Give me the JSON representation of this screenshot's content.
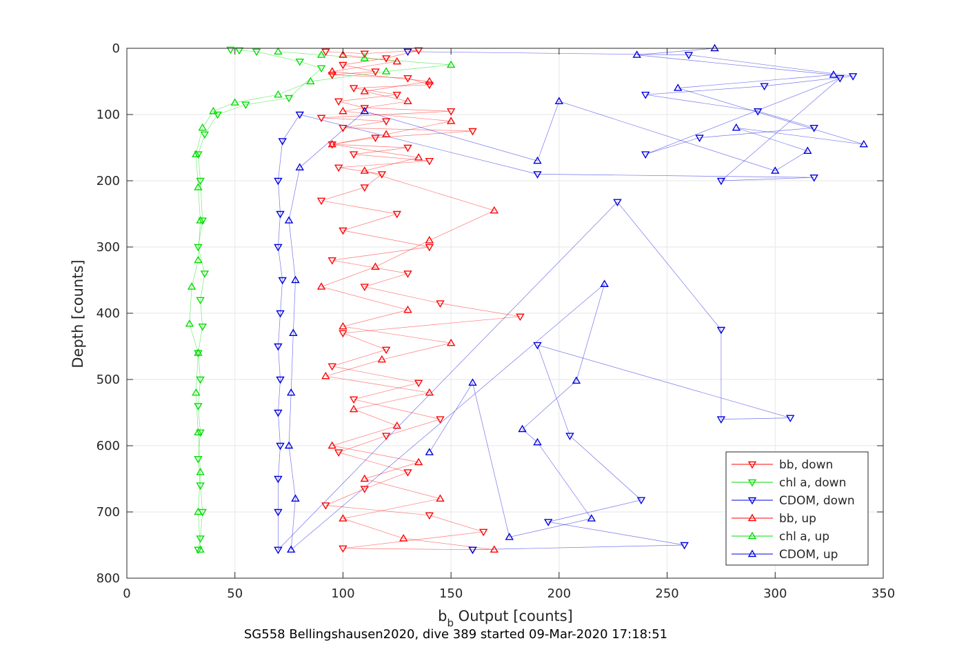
{
  "chart_data": {
    "type": "scatter",
    "title": "SG558 Bellingshausen2020, dive 389 started 09-Mar-2020 17:18:51",
    "xlabel_main": "b",
    "xlabel_sub": "b",
    "xlabel_rest": " Output [counts]",
    "ylabel": "Depth [counts]",
    "xlim": [
      0,
      350
    ],
    "ylim": [
      0,
      800
    ],
    "y_reversed": true,
    "grid": true,
    "legend_placement": "bottom-right",
    "xticks": [
      "0",
      "50",
      "100",
      "150",
      "200",
      "250",
      "300",
      "350"
    ],
    "yticks": [
      "0",
      "100",
      "200",
      "300",
      "400",
      "500",
      "600",
      "700",
      "800"
    ],
    "series": [
      {
        "name": "bb, down",
        "color": "#ff0000",
        "marker": "triangle-down",
        "points": [
          [
            92,
            5
          ],
          [
            110,
            8
          ],
          [
            135,
            3
          ],
          [
            120,
            15
          ],
          [
            100,
            25
          ],
          [
            115,
            35
          ],
          [
            95,
            40
          ],
          [
            130,
            45
          ],
          [
            140,
            55
          ],
          [
            105,
            60
          ],
          [
            125,
            70
          ],
          [
            98,
            80
          ],
          [
            110,
            90
          ],
          [
            150,
            95
          ],
          [
            90,
            105
          ],
          [
            120,
            110
          ],
          [
            100,
            120
          ],
          [
            160,
            125
          ],
          [
            115,
            135
          ],
          [
            95,
            145
          ],
          [
            130,
            150
          ],
          [
            105,
            160
          ],
          [
            140,
            170
          ],
          [
            98,
            180
          ],
          [
            118,
            190
          ],
          [
            110,
            210
          ],
          [
            90,
            230
          ],
          [
            125,
            250
          ],
          [
            100,
            275
          ],
          [
            140,
            300
          ],
          [
            95,
            320
          ],
          [
            130,
            340
          ],
          [
            110,
            360
          ],
          [
            145,
            385
          ],
          [
            182,
            405
          ],
          [
            100,
            430
          ],
          [
            120,
            455
          ],
          [
            95,
            480
          ],
          [
            135,
            505
          ],
          [
            105,
            530
          ],
          [
            145,
            560
          ],
          [
            120,
            585
          ],
          [
            98,
            610
          ],
          [
            130,
            640
          ],
          [
            110,
            665
          ],
          [
            92,
            690
          ],
          [
            140,
            705
          ],
          [
            165,
            730
          ],
          [
            100,
            755
          ],
          [
            160,
            757
          ]
        ]
      },
      {
        "name": "chl a, down",
        "color": "#00dd00",
        "marker": "triangle-down",
        "points": [
          [
            48,
            2
          ],
          [
            52,
            3
          ],
          [
            60,
            5
          ],
          [
            80,
            20
          ],
          [
            90,
            30
          ],
          [
            75,
            75
          ],
          [
            55,
            85
          ],
          [
            42,
            100
          ],
          [
            36,
            130
          ],
          [
            33,
            160
          ],
          [
            34,
            200
          ],
          [
            35,
            260
          ],
          [
            33,
            300
          ],
          [
            36,
            340
          ],
          [
            34,
            380
          ],
          [
            35,
            420
          ],
          [
            33,
            460
          ],
          [
            34,
            500
          ],
          [
            33,
            540
          ],
          [
            34,
            580
          ],
          [
            33,
            620
          ],
          [
            34,
            660
          ],
          [
            35,
            700
          ],
          [
            34,
            740
          ],
          [
            33,
            757
          ]
        ]
      },
      {
        "name": "CDOM, down",
        "color": "#0000dd",
        "marker": "triangle-down",
        "points": [
          [
            130,
            5
          ],
          [
            260,
            10
          ],
          [
            336,
            42
          ],
          [
            295,
            57
          ],
          [
            240,
            70
          ],
          [
            292,
            95
          ],
          [
            318,
            120
          ],
          [
            265,
            135
          ],
          [
            240,
            160
          ],
          [
            330,
            45
          ],
          [
            275,
            200
          ],
          [
            318,
            195
          ],
          [
            190,
            190
          ],
          [
            80,
            100
          ],
          [
            72,
            140
          ],
          [
            70,
            200
          ],
          [
            71,
            250
          ],
          [
            70,
            300
          ],
          [
            72,
            350
          ],
          [
            71,
            400
          ],
          [
            70,
            450
          ],
          [
            71,
            500
          ],
          [
            70,
            550
          ],
          [
            71,
            600
          ],
          [
            70,
            650
          ],
          [
            70,
            700
          ],
          [
            70,
            757
          ],
          [
            227,
            232
          ],
          [
            275,
            425
          ],
          [
            275,
            560
          ],
          [
            307,
            558
          ],
          [
            190,
            448
          ],
          [
            205,
            585
          ],
          [
            238,
            682
          ],
          [
            195,
            715
          ],
          [
            258,
            750
          ],
          [
            160,
            757
          ]
        ]
      },
      {
        "name": "bb, up",
        "color": "#ff0000",
        "marker": "triangle-up",
        "points": [
          [
            100,
            10
          ],
          [
            125,
            20
          ],
          [
            95,
            35
          ],
          [
            140,
            50
          ],
          [
            110,
            65
          ],
          [
            130,
            80
          ],
          [
            100,
            95
          ],
          [
            150,
            110
          ],
          [
            120,
            130
          ],
          [
            95,
            145
          ],
          [
            135,
            165
          ],
          [
            110,
            185
          ],
          [
            170,
            245
          ],
          [
            140,
            290
          ],
          [
            115,
            330
          ],
          [
            90,
            360
          ],
          [
            130,
            395
          ],
          [
            100,
            420
          ],
          [
            150,
            445
          ],
          [
            118,
            470
          ],
          [
            92,
            495
          ],
          [
            140,
            520
          ],
          [
            105,
            545
          ],
          [
            125,
            570
          ],
          [
            95,
            600
          ],
          [
            135,
            625
          ],
          [
            110,
            650
          ],
          [
            145,
            680
          ],
          [
            100,
            710
          ],
          [
            128,
            740
          ],
          [
            170,
            757
          ]
        ]
      },
      {
        "name": "chl a, up",
        "color": "#00dd00",
        "marker": "triangle-up",
        "points": [
          [
            70,
            5
          ],
          [
            90,
            10
          ],
          [
            110,
            15
          ],
          [
            150,
            25
          ],
          [
            120,
            35
          ],
          [
            85,
            50
          ],
          [
            70,
            70
          ],
          [
            50,
            82
          ],
          [
            40,
            95
          ],
          [
            35,
            120
          ],
          [
            32,
            160
          ],
          [
            33,
            210
          ],
          [
            34,
            260
          ],
          [
            33,
            320
          ],
          [
            30,
            360
          ],
          [
            29,
            416
          ],
          [
            33,
            460
          ],
          [
            32,
            520
          ],
          [
            33,
            580
          ],
          [
            34,
            640
          ],
          [
            33,
            700
          ],
          [
            34,
            757
          ]
        ]
      },
      {
        "name": "CDOM, up",
        "color": "#0000dd",
        "marker": "triangle-up",
        "points": [
          [
            272,
            0
          ],
          [
            236,
            10
          ],
          [
            327,
            40
          ],
          [
            255,
            60
          ],
          [
            341,
            145
          ],
          [
            282,
            120
          ],
          [
            315,
            155
          ],
          [
            300,
            185
          ],
          [
            200,
            80
          ],
          [
            190,
            170
          ],
          [
            110,
            95
          ],
          [
            80,
            180
          ],
          [
            75,
            260
          ],
          [
            78,
            350
          ],
          [
            77,
            430
          ],
          [
            76,
            520
          ],
          [
            75,
            600
          ],
          [
            78,
            680
          ],
          [
            76,
            757
          ],
          [
            221,
            356
          ],
          [
            208,
            502
          ],
          [
            183,
            575
          ],
          [
            190,
            595
          ],
          [
            215,
            710
          ],
          [
            177,
            738
          ],
          [
            160,
            505
          ],
          [
            140,
            610
          ]
        ]
      }
    ]
  }
}
